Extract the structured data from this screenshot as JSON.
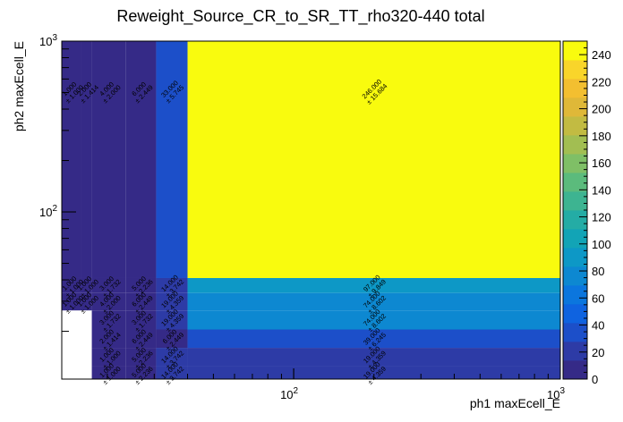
{
  "chart_data": {
    "type": "heatmap",
    "title": "Reweight_Source_CR_to_SR_TT_rho320-440 total",
    "xlabel": "ph1 maxEcell_E",
    "ylabel": "ph2 maxEcell_E",
    "x_scale": "log",
    "y_scale": "log",
    "x_ticks": [
      {
        "base": "10",
        "exp": "2",
        "value": 100
      },
      {
        "base": "10",
        "exp": "3",
        "value": 1000
      }
    ],
    "y_ticks": [
      {
        "base": "10",
        "exp": "2",
        "value": 100
      },
      {
        "base": "10",
        "exp": "3",
        "value": 1000
      }
    ],
    "x_edges": [
      13.5,
      16.0,
      17.5,
      23.5,
      30.5,
      40.0,
      1000
    ],
    "y_edges": [
      10.5,
      12.5,
      16.0,
      20.5,
      26.5,
      33.5,
      41.0,
      1000
    ],
    "cells": [
      {
        "ix": 0,
        "iy": 6,
        "value": 1.0,
        "err": 1.0,
        "value_text": "1.000",
        "err_text": "± 1.000"
      },
      {
        "ix": 0,
        "iy": 5,
        "value": 1.0,
        "err": 1.0,
        "value_text": "1.000",
        "err_text": "± 1.000"
      },
      {
        "ix": 0,
        "iy": 4,
        "value": 1.0,
        "err": 1.0,
        "value_text": "1.000",
        "err_text": "± 1.000"
      },
      {
        "ix": 1,
        "iy": 6,
        "value": 2.0,
        "err": 1.414,
        "value_text": "2.000",
        "err_text": "± 1.414"
      },
      {
        "ix": 1,
        "iy": 5,
        "value": 1.0,
        "err": 1.0,
        "value_text": "1.000",
        "err_text": "± 1.000"
      },
      {
        "ix": 1,
        "iy": 4,
        "value": 1.0,
        "err": 1.0,
        "value_text": "1.000",
        "err_text": "± 1.000"
      },
      {
        "ix": 2,
        "iy": 6,
        "value": 4.0,
        "err": 2.0,
        "value_text": "4.000",
        "err_text": "± 2.000"
      },
      {
        "ix": 2,
        "iy": 5,
        "value": 3.0,
        "err": 1.732,
        "value_text": "3.000",
        "err_text": "± 1.732"
      },
      {
        "ix": 2,
        "iy": 4,
        "value": 4.0,
        "err": 2.0,
        "value_text": "4.000",
        "err_text": "± 2.000"
      },
      {
        "ix": 2,
        "iy": 3,
        "value": 3.0,
        "err": 1.732,
        "value_text": "3.000",
        "err_text": "± 1.732"
      },
      {
        "ix": 2,
        "iy": 2,
        "value": 2.0,
        "err": 1.414,
        "value_text": "2.000",
        "err_text": "± 1.414"
      },
      {
        "ix": 2,
        "iy": 1,
        "value": 1.0,
        "err": 1.0,
        "value_text": "1.000",
        "err_text": "± 1.000"
      },
      {
        "ix": 2,
        "iy": 0,
        "value": 1.0,
        "err": 1.0,
        "value_text": "1.000",
        "err_text": "± 1.000"
      },
      {
        "ix": 3,
        "iy": 6,
        "value": 6.0,
        "err": 2.449,
        "value_text": "6.000",
        "err_text": "± 2.449"
      },
      {
        "ix": 3,
        "iy": 5,
        "value": 5.0,
        "err": 2.236,
        "value_text": "5.000",
        "err_text": "± 2.236"
      },
      {
        "ix": 3,
        "iy": 4,
        "value": 6.0,
        "err": 2.449,
        "value_text": "6.000",
        "err_text": "± 2.449"
      },
      {
        "ix": 3,
        "iy": 3,
        "value": 3.0,
        "err": 1.732,
        "value_text": "3.000",
        "err_text": "± 1.732"
      },
      {
        "ix": 3,
        "iy": 2,
        "value": 6.0,
        "err": 2.449,
        "value_text": "6.000",
        "err_text": "± 2.449"
      },
      {
        "ix": 3,
        "iy": 1,
        "value": 5.0,
        "err": 2.236,
        "value_text": "5.000",
        "err_text": "± 2.236"
      },
      {
        "ix": 3,
        "iy": 0,
        "value": 5.0,
        "err": 2.236,
        "value_text": "5.000",
        "err_text": "± 2.236"
      },
      {
        "ix": 4,
        "iy": 6,
        "value": 33.0,
        "err": 5.745,
        "value_text": "33.000",
        "err_text": "± 5.745"
      },
      {
        "ix": 4,
        "iy": 5,
        "value": 14.0,
        "err": 3.742,
        "value_text": "14.000",
        "err_text": "± 3.742"
      },
      {
        "ix": 4,
        "iy": 4,
        "value": 19.0,
        "err": 4.359,
        "value_text": "19.000",
        "err_text": "± 4.359"
      },
      {
        "ix": 4,
        "iy": 3,
        "value": 19.0,
        "err": 4.359,
        "value_text": "19.000",
        "err_text": "± 4.359"
      },
      {
        "ix": 4,
        "iy": 2,
        "value": 6.0,
        "err": 2.449,
        "value_text": "6.000",
        "err_text": "± 2.449"
      },
      {
        "ix": 4,
        "iy": 1,
        "value": 14.0,
        "err": 3.742,
        "value_text": "14.000",
        "err_text": "± 3.742"
      },
      {
        "ix": 4,
        "iy": 0,
        "value": 14.0,
        "err": 3.742,
        "value_text": "14.000",
        "err_text": "± 3.742"
      },
      {
        "ix": 5,
        "iy": 6,
        "value": 246.0,
        "err": 15.684,
        "value_text": "246.000",
        "err_text": "± 15.684"
      },
      {
        "ix": 5,
        "iy": 5,
        "value": 97.0,
        "err": 9.849,
        "value_text": "97.000",
        "err_text": "± 9.849"
      },
      {
        "ix": 5,
        "iy": 4,
        "value": 74.0,
        "err": 8.602,
        "value_text": "74.000",
        "err_text": "± 8.602"
      },
      {
        "ix": 5,
        "iy": 3,
        "value": 74.0,
        "err": 8.602,
        "value_text": "74.000",
        "err_text": "± 8.602"
      },
      {
        "ix": 5,
        "iy": 2,
        "value": 39.0,
        "err": 6.245,
        "value_text": "39.000",
        "err_text": "± 6.245"
      },
      {
        "ix": 5,
        "iy": 1,
        "value": 19.0,
        "err": 4.359,
        "value_text": "19.000",
        "err_text": "± 4.359"
      },
      {
        "ix": 5,
        "iy": 0,
        "value": 19.0,
        "err": 4.359,
        "value_text": "19.000",
        "err_text": "± 4.359"
      }
    ],
    "z_range": [
      0,
      250
    ],
    "colorbar_ticks": [
      "0",
      "20",
      "40",
      "60",
      "80",
      "100",
      "120",
      "140",
      "160",
      "180",
      "200",
      "220",
      "240"
    ],
    "palette": [
      "#352a87",
      "#2d3ba6",
      "#1c4fc9",
      "#0f63e0",
      "#0b76de",
      "#0d88d1",
      "#0d98c6",
      "#12a4b6",
      "#24aca5",
      "#3db491",
      "#5bbb7c",
      "#7fbf66",
      "#a2be52",
      "#c2bb42",
      "#dfb838",
      "#f3bf30",
      "#f9d52a",
      "#f9fb0e"
    ]
  }
}
